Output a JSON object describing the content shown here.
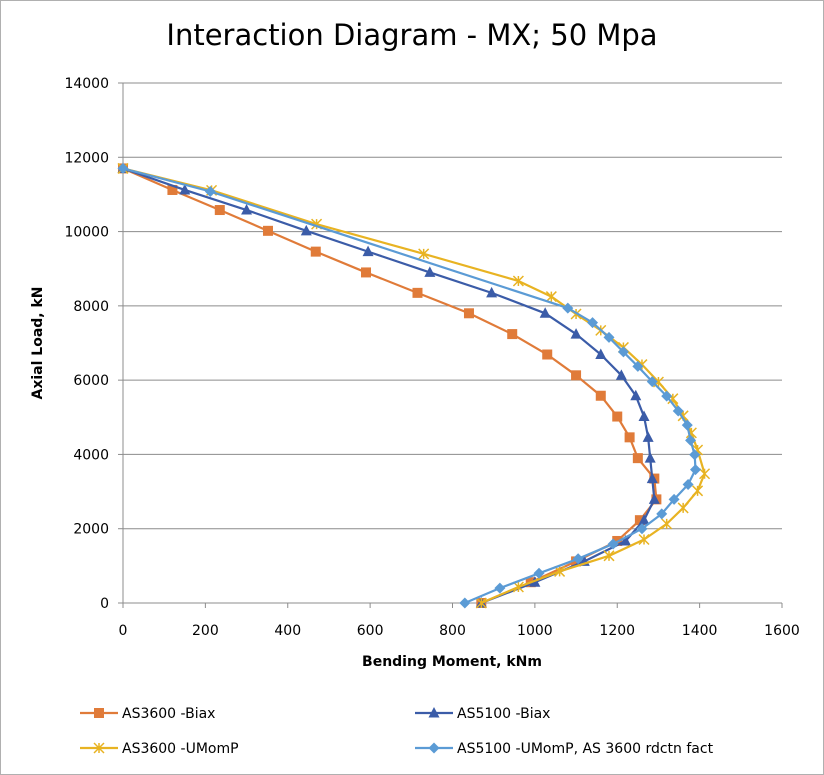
{
  "chart_data": {
    "type": "line",
    "title": "Interaction Diagram - MX; 50 Mpa",
    "xlabel": "Bending Moment, kNm",
    "ylabel": "Axial Load, kN",
    "xlim": [
      0,
      1600
    ],
    "ylim": [
      0,
      14000
    ],
    "x_ticks": [
      0,
      200,
      400,
      600,
      800,
      1000,
      1200,
      1400,
      1600
    ],
    "y_ticks": [
      0,
      2000,
      4000,
      6000,
      8000,
      10000,
      12000,
      14000
    ],
    "x_tick_labels": [
      "0",
      "200",
      "400",
      "600",
      "800",
      "1000",
      "1200",
      "1400",
      "1600"
    ],
    "y_tick_labels": [
      "0",
      "2000",
      "4000",
      "6000",
      "8000",
      "10000",
      "12000",
      "14000"
    ],
    "grid": "horizontal",
    "legend_position": "bottom",
    "series": [
      {
        "name": "AS3600 -Biax",
        "color": "#e07b39",
        "marker": "square",
        "points": [
          [
            0,
            11700
          ],
          [
            120,
            11120
          ],
          [
            235,
            10580
          ],
          [
            352,
            10020
          ],
          [
            468,
            9460
          ],
          [
            590,
            8900
          ],
          [
            715,
            8350
          ],
          [
            840,
            7800
          ],
          [
            945,
            7240
          ],
          [
            1030,
            6690
          ],
          [
            1100,
            6130
          ],
          [
            1160,
            5580
          ],
          [
            1200,
            5020
          ],
          [
            1230,
            4460
          ],
          [
            1250,
            3900
          ],
          [
            1290,
            3350
          ],
          [
            1295,
            2790
          ],
          [
            1255,
            2230
          ],
          [
            1200,
            1670
          ],
          [
            1100,
            1120
          ],
          [
            990,
            560
          ],
          [
            870,
            0
          ]
        ]
      },
      {
        "name": "AS5100 -Biax",
        "color": "#3b5ca8",
        "marker": "triangle",
        "points": [
          [
            0,
            11700
          ],
          [
            150,
            11120
          ],
          [
            300,
            10580
          ],
          [
            445,
            10020
          ],
          [
            595,
            9460
          ],
          [
            745,
            8900
          ],
          [
            895,
            8350
          ],
          [
            1025,
            7800
          ],
          [
            1100,
            7240
          ],
          [
            1160,
            6690
          ],
          [
            1210,
            6130
          ],
          [
            1245,
            5580
          ],
          [
            1265,
            5020
          ],
          [
            1275,
            4460
          ],
          [
            1280,
            3900
          ],
          [
            1285,
            3350
          ],
          [
            1290,
            2790
          ],
          [
            1265,
            2230
          ],
          [
            1220,
            1670
          ],
          [
            1120,
            1120
          ],
          [
            1000,
            560
          ],
          [
            870,
            0
          ]
        ]
      },
      {
        "name": "AS3600 -UMomP",
        "color": "#e8b322",
        "marker": "x",
        "points": [
          [
            0,
            11700
          ],
          [
            215,
            11110
          ],
          [
            470,
            10200
          ],
          [
            730,
            9400
          ],
          [
            960,
            8670
          ],
          [
            1040,
            8250
          ],
          [
            1100,
            7780
          ],
          [
            1160,
            7340
          ],
          [
            1215,
            6880
          ],
          [
            1260,
            6420
          ],
          [
            1300,
            5950
          ],
          [
            1335,
            5500
          ],
          [
            1360,
            5040
          ],
          [
            1380,
            4580
          ],
          [
            1395,
            4120
          ],
          [
            1412,
            3480
          ],
          [
            1395,
            3020
          ],
          [
            1360,
            2560
          ],
          [
            1320,
            2130
          ],
          [
            1265,
            1710
          ],
          [
            1180,
            1270
          ],
          [
            1060,
            850
          ],
          [
            960,
            430
          ],
          [
            870,
            0
          ]
        ]
      },
      {
        "name": "AS5100 -UMomP, AS 3600 rdctn fact",
        "color": "#5b9bd5",
        "marker": "diamond",
        "points": [
          [
            0,
            11700
          ],
          [
            212,
            11080
          ],
          [
            1080,
            7940
          ],
          [
            1140,
            7550
          ],
          [
            1180,
            7150
          ],
          [
            1215,
            6760
          ],
          [
            1250,
            6370
          ],
          [
            1285,
            5960
          ],
          [
            1320,
            5570
          ],
          [
            1348,
            5170
          ],
          [
            1370,
            4790
          ],
          [
            1378,
            4380
          ],
          [
            1388,
            3990
          ],
          [
            1390,
            3590
          ],
          [
            1372,
            3190
          ],
          [
            1338,
            2790
          ],
          [
            1308,
            2400
          ],
          [
            1260,
            2000
          ],
          [
            1190,
            1590
          ],
          [
            1105,
            1190
          ],
          [
            1010,
            800
          ],
          [
            915,
            400
          ],
          [
            830,
            0
          ]
        ]
      }
    ]
  }
}
